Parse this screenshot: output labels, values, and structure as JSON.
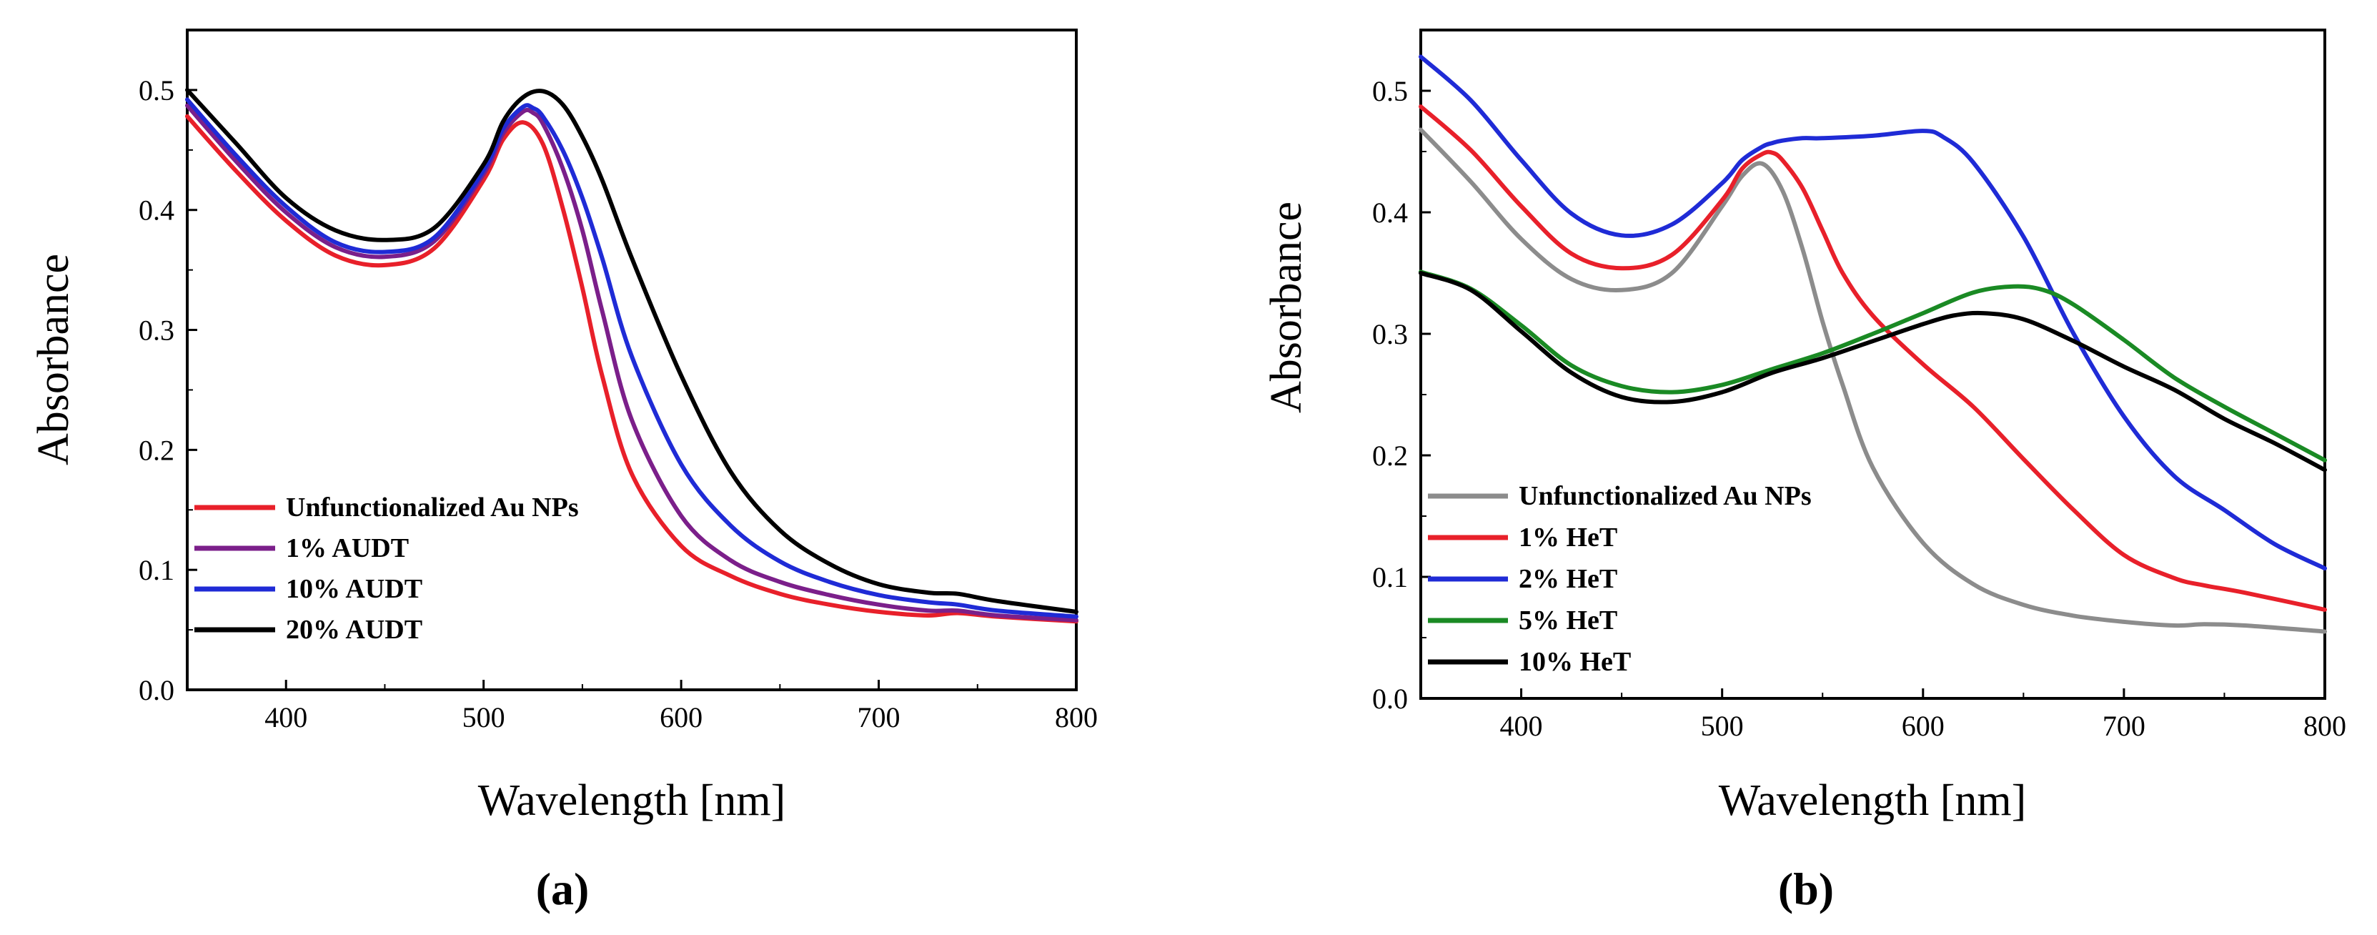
{
  "chart_data": [
    {
      "type": "line",
      "panel_label": "(a)",
      "xlabel": "Wavelength [nm]",
      "ylabel": "Absorbance",
      "xlim": [
        350,
        800
      ],
      "ylim": [
        0.0,
        0.55
      ],
      "xticks": [
        "400",
        "500",
        "600",
        "700",
        "800"
      ],
      "yticks": [
        "0.0",
        "0.1",
        "0.2",
        "0.3",
        "0.4",
        "0.5"
      ],
      "legend_position": "bottom-left",
      "series": [
        {
          "name": "Unfunctionalized Au NPs",
          "color": "#e8202a",
          "x": [
            350,
            375,
            400,
            425,
            450,
            475,
            500,
            510,
            520,
            530,
            540,
            550,
            560,
            575,
            600,
            625,
            650,
            675,
            700,
            725,
            740,
            760,
            800
          ],
          "y": [
            0.478,
            0.432,
            0.391,
            0.362,
            0.354,
            0.368,
            0.425,
            0.459,
            0.473,
            0.455,
            0.402,
            0.335,
            0.262,
            0.18,
            0.12,
            0.095,
            0.08,
            0.071,
            0.065,
            0.062,
            0.064,
            0.061,
            0.057
          ]
        },
        {
          "name": "1% AUDT",
          "color": "#7b1f8a",
          "x": [
            350,
            375,
            400,
            425,
            450,
            475,
            500,
            510,
            520,
            525,
            530,
            540,
            550,
            560,
            575,
            600,
            625,
            650,
            675,
            700,
            725,
            740,
            760,
            800
          ],
          "y": [
            0.487,
            0.44,
            0.398,
            0.369,
            0.361,
            0.374,
            0.43,
            0.464,
            0.482,
            0.481,
            0.472,
            0.435,
            0.383,
            0.316,
            0.225,
            0.145,
            0.108,
            0.09,
            0.079,
            0.071,
            0.066,
            0.066,
            0.062,
            0.058
          ]
        },
        {
          "name": "10% AUDT",
          "color": "#1f2bd6",
          "x": [
            350,
            375,
            400,
            425,
            450,
            475,
            500,
            510,
            520,
            525,
            530,
            540,
            550,
            560,
            575,
            600,
            625,
            650,
            675,
            700,
            725,
            740,
            760,
            800
          ],
          "y": [
            0.492,
            0.445,
            0.403,
            0.373,
            0.365,
            0.377,
            0.433,
            0.468,
            0.486,
            0.485,
            0.478,
            0.45,
            0.41,
            0.36,
            0.278,
            0.188,
            0.137,
            0.107,
            0.09,
            0.079,
            0.073,
            0.071,
            0.066,
            0.061
          ]
        },
        {
          "name": "20% AUDT",
          "color": "#000000",
          "x": [
            350,
            375,
            400,
            425,
            450,
            475,
            500,
            510,
            520,
            530,
            540,
            550,
            560,
            575,
            600,
            625,
            650,
            675,
            700,
            725,
            740,
            760,
            800
          ],
          "y": [
            0.5,
            0.455,
            0.41,
            0.383,
            0.375,
            0.385,
            0.438,
            0.474,
            0.494,
            0.499,
            0.488,
            0.461,
            0.425,
            0.36,
            0.262,
            0.182,
            0.133,
            0.105,
            0.088,
            0.081,
            0.08,
            0.074,
            0.065
          ]
        }
      ]
    },
    {
      "type": "line",
      "panel_label": "(b)",
      "xlabel": "Wavelength [nm]",
      "ylabel": "Absorbance",
      "xlim": [
        350,
        800
      ],
      "ylim": [
        0.0,
        0.55
      ],
      "xticks": [
        "400",
        "500",
        "600",
        "700",
        "800"
      ],
      "yticks": [
        "0.0",
        "0.1",
        "0.2",
        "0.3",
        "0.4",
        "0.5"
      ],
      "legend_position": "bottom-left",
      "series": [
        {
          "name": "Unfunctionalized Au NPs",
          "color": "#8c8c8c",
          "x": [
            350,
            375,
            400,
            425,
            450,
            475,
            500,
            510,
            520,
            530,
            540,
            550,
            560,
            575,
            600,
            625,
            650,
            675,
            700,
            725,
            740,
            760,
            800
          ],
          "y": [
            0.468,
            0.425,
            0.378,
            0.345,
            0.336,
            0.35,
            0.405,
            0.43,
            0.44,
            0.418,
            0.37,
            0.31,
            0.258,
            0.19,
            0.128,
            0.094,
            0.077,
            0.068,
            0.063,
            0.06,
            0.061,
            0.06,
            0.055
          ]
        },
        {
          "name": "1% HeT",
          "color": "#e8202a",
          "x": [
            350,
            375,
            400,
            425,
            450,
            475,
            500,
            510,
            520,
            525,
            530,
            540,
            550,
            560,
            575,
            600,
            625,
            650,
            675,
            700,
            725,
            740,
            760,
            800
          ],
          "y": [
            0.487,
            0.451,
            0.405,
            0.366,
            0.354,
            0.365,
            0.41,
            0.436,
            0.448,
            0.449,
            0.443,
            0.42,
            0.385,
            0.35,
            0.315,
            0.275,
            0.24,
            0.197,
            0.155,
            0.118,
            0.099,
            0.093,
            0.087,
            0.073
          ]
        },
        {
          "name": "2% HeT",
          "color": "#1f2bd6",
          "x": [
            350,
            375,
            400,
            425,
            450,
            475,
            500,
            510,
            520,
            525,
            530,
            540,
            550,
            575,
            600,
            610,
            625,
            650,
            675,
            700,
            725,
            750,
            775,
            800
          ],
          "y": [
            0.528,
            0.492,
            0.443,
            0.399,
            0.381,
            0.39,
            0.424,
            0.443,
            0.454,
            0.457,
            0.459,
            0.461,
            0.461,
            0.463,
            0.467,
            0.462,
            0.441,
            0.38,
            0.3,
            0.232,
            0.183,
            0.155,
            0.127,
            0.107
          ]
        },
        {
          "name": "5% HeT",
          "color": "#1a8a24",
          "x": [
            350,
            375,
            400,
            425,
            450,
            475,
            500,
            525,
            550,
            575,
            600,
            625,
            645,
            660,
            675,
            700,
            725,
            750,
            775,
            800
          ],
          "y": [
            0.351,
            0.337,
            0.307,
            0.274,
            0.257,
            0.252,
            0.258,
            0.271,
            0.284,
            0.3,
            0.317,
            0.334,
            0.339,
            0.336,
            0.324,
            0.295,
            0.264,
            0.24,
            0.218,
            0.196
          ]
        },
        {
          "name": "10% HeT",
          "color": "#000000",
          "x": [
            350,
            375,
            400,
            425,
            450,
            475,
            500,
            525,
            550,
            575,
            600,
            615,
            630,
            650,
            675,
            700,
            725,
            750,
            775,
            800
          ],
          "y": [
            0.35,
            0.336,
            0.302,
            0.268,
            0.248,
            0.244,
            0.252,
            0.268,
            0.28,
            0.294,
            0.308,
            0.315,
            0.317,
            0.312,
            0.294,
            0.273,
            0.254,
            0.23,
            0.21,
            0.188
          ]
        }
      ]
    }
  ]
}
